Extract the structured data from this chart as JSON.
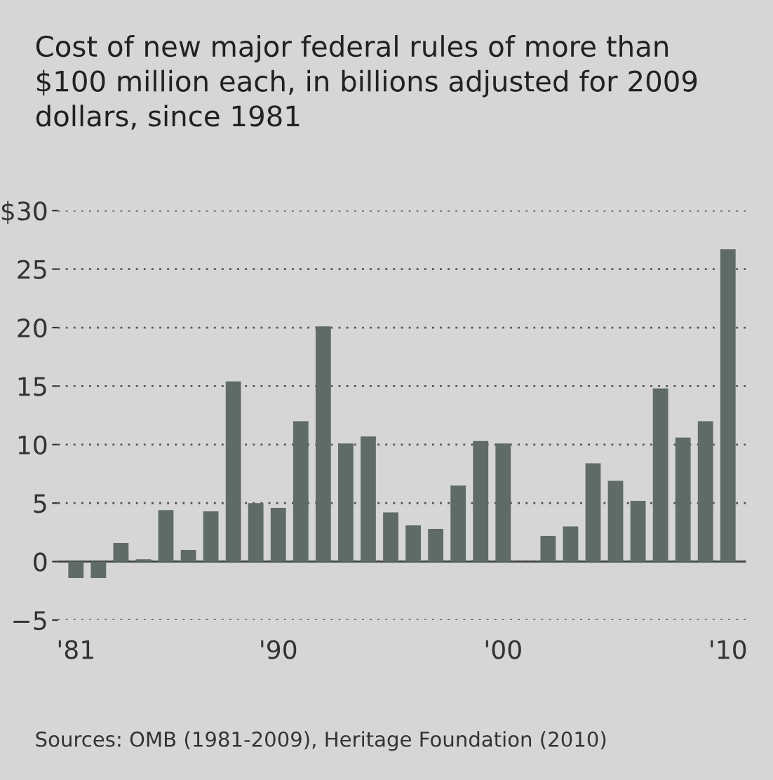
{
  "chart_data": {
    "type": "bar",
    "title": "Cost of new major federal rules of more than\n$100 million each, in billions adjusted for 2009\ndollars, since 1981",
    "categories": [
      "'81",
      null,
      null,
      null,
      null,
      null,
      null,
      null,
      null,
      "'90",
      null,
      null,
      null,
      null,
      null,
      null,
      null,
      null,
      null,
      "'00",
      null,
      null,
      null,
      null,
      null,
      null,
      null,
      null,
      null,
      "'10"
    ],
    "values": [
      -1.4,
      -1.4,
      1.6,
      0.2,
      4.4,
      1.0,
      4.3,
      15.4,
      5.0,
      4.6,
      12.0,
      20.1,
      10.1,
      10.7,
      4.2,
      3.1,
      2.8,
      6.5,
      10.3,
      10.1,
      0,
      2.2,
      3.0,
      8.4,
      6.9,
      5.2,
      14.8,
      10.6,
      12.0,
      26.7
    ],
    "color": "#5f6b68",
    "ylim": [
      -5,
      30
    ],
    "yticks": [
      {
        "value": -5,
        "label": "−5"
      },
      0,
      5,
      10,
      15,
      20,
      25,
      {
        "value": 30,
        "label": "$30"
      }
    ],
    "grid": "y",
    "annotations": [
      "Sources: OMB (1981-2009), Heritage Foundation (2010)"
    ]
  }
}
